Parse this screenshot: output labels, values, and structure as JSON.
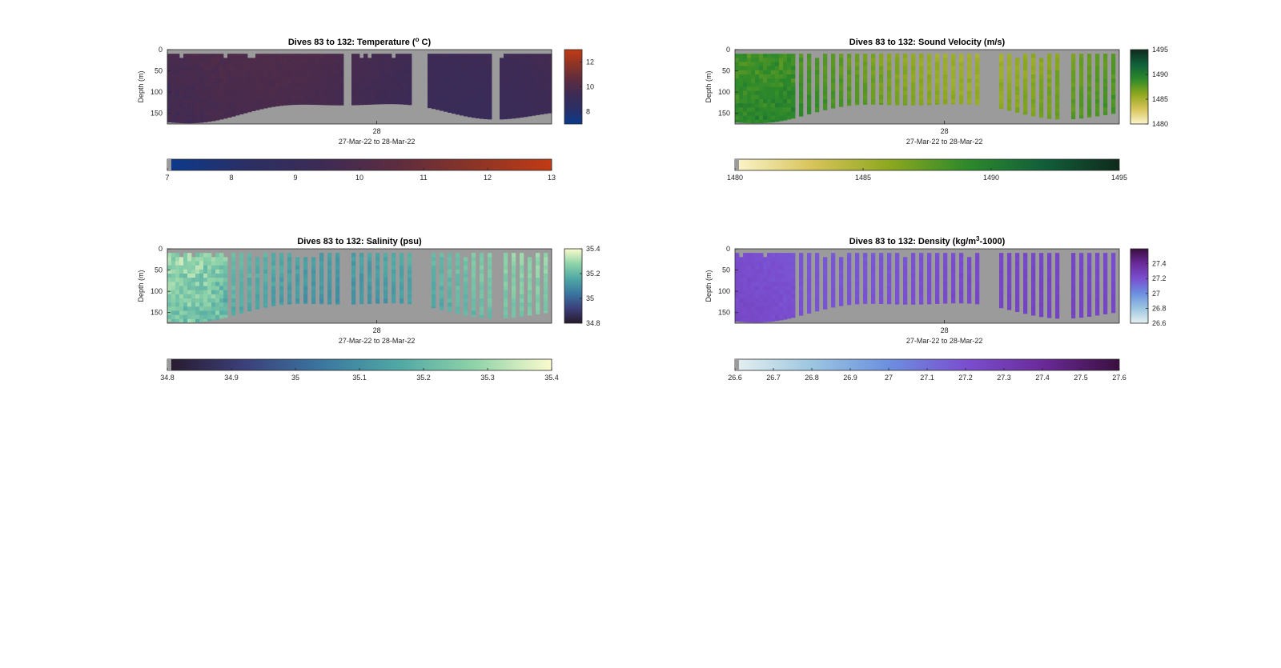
{
  "figure": {
    "background": "#ffffff",
    "nodata_color": "#9b9b9b"
  },
  "chart_data": [
    {
      "type": "heatmap",
      "variable": "temperature",
      "title_main": "Dives 83 to 132: Temperature (",
      "title_sup": "o",
      "title_tail": " C)",
      "ylabel": "Depth (m)",
      "y_ticks": [
        "0",
        "50",
        "100",
        "150"
      ],
      "y_tick_values": [
        0,
        50,
        100,
        150
      ],
      "ylim": [
        0,
        175
      ],
      "y_reversed": true,
      "x_tick_label": "28",
      "x_tick_position": 0.545,
      "date_range": "27-Mar-22 to 28-Mar-22",
      "clim": [
        7,
        13
      ],
      "colormap": [
        "#0a3a8c",
        "#2a2f66",
        "#3d2b55",
        "#5e2c3f",
        "#8c3426",
        "#c23a14"
      ],
      "side_colorbar_ticks": [
        "12",
        "10",
        "8"
      ],
      "side_colorbar_values": [
        12,
        10,
        8
      ],
      "bottom_colorbar_ticks": [
        "7",
        "8",
        "9",
        "10",
        "11",
        "12",
        "13"
      ],
      "bottom_colorbar_values": [
        7,
        8,
        9,
        10,
        11,
        12,
        13
      ],
      "value_range": [
        9.0,
        10.3
      ],
      "gaps": [
        [
          0.458,
          0.481
        ],
        [
          0.64,
          0.68
        ],
        [
          0.84,
          0.86
        ]
      ],
      "strip_mode": "continuous"
    },
    {
      "type": "heatmap",
      "variable": "sound_velocity",
      "title_main": "Dives 83 to 132: Sound Velocity (m/s)",
      "title_sup": "",
      "title_tail": "",
      "ylabel": "Depth (m)",
      "y_ticks": [
        "0",
        "50",
        "100",
        "150"
      ],
      "y_tick_values": [
        0,
        50,
        100,
        150
      ],
      "ylim": [
        0,
        175
      ],
      "y_reversed": true,
      "x_tick_label": "28",
      "x_tick_position": 0.545,
      "date_range": "27-Mar-22 to 28-Mar-22",
      "clim": [
        1480,
        1495
      ],
      "colormap": [
        "#fbf5cc",
        "#d8c45a",
        "#8ea81f",
        "#2e8a2a",
        "#10603a",
        "#0f2a1c"
      ],
      "side_colorbar_ticks": [
        "1495",
        "1490",
        "1485",
        "1480"
      ],
      "side_colorbar_values": [
        1495,
        1490,
        1485,
        1480
      ],
      "bottom_colorbar_ticks": [
        "1480",
        "1485",
        "1490",
        "1495"
      ],
      "bottom_colorbar_values": [
        1480,
        1485,
        1490,
        1495
      ],
      "value_range": [
        1484.5,
        1490.5
      ],
      "gaps": [
        [
          0.64,
          0.68
        ],
        [
          0.84,
          0.86
        ]
      ],
      "strip_mode": "striped"
    },
    {
      "type": "heatmap",
      "variable": "salinity",
      "title_main": "Dives 83 to 132: Salinity (psu)",
      "title_sup": "",
      "title_tail": "",
      "ylabel": "Depth (m)",
      "y_ticks": [
        "0",
        "50",
        "100",
        "150"
      ],
      "y_tick_values": [
        0,
        50,
        100,
        150
      ],
      "ylim": [
        0,
        175
      ],
      "y_reversed": true,
      "x_tick_label": "28",
      "x_tick_position": 0.545,
      "date_range": "27-Mar-22 to 28-Mar-22",
      "clim": [
        34.8,
        35.4
      ],
      "colormap": [
        "#281a2c",
        "#3b3f7a",
        "#3a76a0",
        "#4fa8a4",
        "#8fd3a9",
        "#fbfbcd"
      ],
      "side_colorbar_ticks": [
        "35.4",
        "35.2",
        "35",
        "34.8"
      ],
      "side_colorbar_values": [
        35.4,
        35.2,
        35.0,
        34.8
      ],
      "bottom_colorbar_ticks": [
        "34.8",
        "34.9",
        "35",
        "35.1",
        "35.2",
        "35.3",
        "35.4"
      ],
      "bottom_colorbar_values": [
        34.8,
        34.9,
        35.0,
        35.1,
        35.2,
        35.3,
        35.4
      ],
      "value_range": [
        35.05,
        35.35
      ],
      "gaps": [
        [
          0.458,
          0.481
        ],
        [
          0.64,
          0.68
        ],
        [
          0.84,
          0.86
        ]
      ],
      "strip_mode": "striped"
    },
    {
      "type": "heatmap",
      "variable": "density",
      "title_main": "Dives 83 to 132: Density (kg/m",
      "title_sup": "3",
      "title_tail": "-1000)",
      "ylabel": "Depth (m)",
      "y_ticks": [
        "0",
        "50",
        "100",
        "150"
      ],
      "y_tick_values": [
        0,
        50,
        100,
        150
      ],
      "ylim": [
        0,
        175
      ],
      "y_reversed": true,
      "x_tick_label": "28",
      "x_tick_position": 0.545,
      "date_range": "27-Mar-22 to 28-Mar-22",
      "clim": [
        26.6,
        27.6
      ],
      "colormap": [
        "#e6f0f0",
        "#9cc6e0",
        "#6c8fe0",
        "#7a4fd0",
        "#6a2a9a",
        "#3a0f3f"
      ],
      "side_colorbar_ticks": [
        "27.4",
        "27.2",
        "27",
        "26.8",
        "26.6"
      ],
      "side_colorbar_values": [
        27.4,
        27.2,
        27.0,
        26.8,
        26.6
      ],
      "bottom_colorbar_ticks": [
        "26.6",
        "26.7",
        "26.8",
        "26.9",
        "27",
        "27.1",
        "27.2",
        "27.3",
        "27.4",
        "27.5",
        "27.6"
      ],
      "bottom_colorbar_values": [
        26.6,
        26.7,
        26.8,
        26.9,
        27.0,
        27.1,
        27.2,
        27.3,
        27.4,
        27.5,
        27.6
      ],
      "value_range": [
        27.15,
        27.3
      ],
      "gaps": [
        [
          0.64,
          0.68
        ],
        [
          0.84,
          0.86
        ]
      ],
      "strip_mode": "striped"
    }
  ]
}
